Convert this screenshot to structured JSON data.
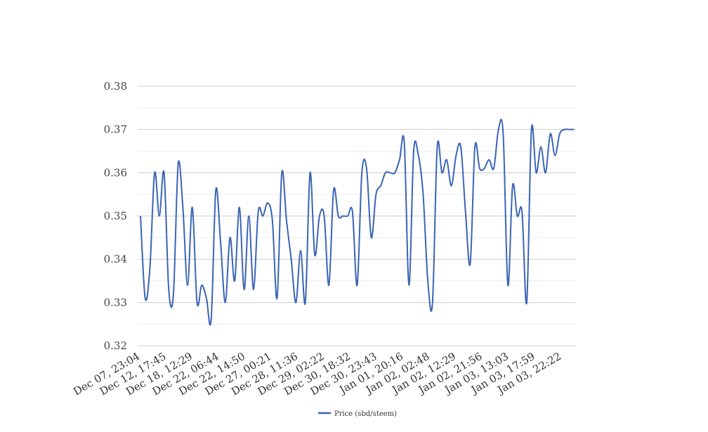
{
  "chart_data": {
    "type": "line",
    "title": "",
    "xlabel": "",
    "ylabel": "",
    "ylim": [
      0.32,
      0.38
    ],
    "y_ticks": [
      "0.32",
      "0.33",
      "0.34",
      "0.35",
      "0.36",
      "0.37",
      "0.38"
    ],
    "y_tick_values": [
      0.32,
      0.33,
      0.34,
      0.35,
      0.36,
      0.37,
      0.38
    ],
    "x_tick_labels": [
      "Dec 07, 23:04",
      "Dec 12, 17:45",
      "Dec 18, 12:29",
      "Dec 22, 06:44",
      "Dec 22, 14:50",
      "Dec 27, 00:21",
      "Dec 28, 11:36",
      "Dec 29, 02:22",
      "Dec 30, 18:32",
      "Dec 30, 23:43",
      "Jan 01, 20:16",
      "Jan 02, 02:48",
      "Jan 02, 12:29",
      "Jan 02, 21:56",
      "Jan 03, 13:03",
      "Jan 03, 17:59",
      "Jan 03, 22:22"
    ],
    "grid": true,
    "minor_grid": true,
    "legend_position": "bottom",
    "colors": {
      "series": "#3a64b6",
      "grid_major": "#cccccc",
      "grid_minor": "#ececec"
    },
    "series": [
      {
        "name": "Price (sbd/steem)",
        "values": [
          0.35,
          0.331,
          0.338,
          0.36,
          0.35,
          0.36,
          0.333,
          0.332,
          0.362,
          0.352,
          0.334,
          0.352,
          0.33,
          0.334,
          0.331,
          0.326,
          0.356,
          0.344,
          0.33,
          0.345,
          0.335,
          0.352,
          0.333,
          0.35,
          0.333,
          0.351,
          0.35,
          0.353,
          0.349,
          0.331,
          0.36,
          0.349,
          0.34,
          0.33,
          0.342,
          0.33,
          0.36,
          0.341,
          0.35,
          0.35,
          0.334,
          0.356,
          0.35,
          0.35,
          0.35,
          0.351,
          0.334,
          0.36,
          0.361,
          0.345,
          0.355,
          0.357,
          0.36,
          0.36,
          0.36,
          0.363,
          0.367,
          0.334,
          0.365,
          0.364,
          0.355,
          0.335,
          0.33,
          0.366,
          0.36,
          0.363,
          0.357,
          0.364,
          0.366,
          0.351,
          0.339,
          0.366,
          0.361,
          0.361,
          0.363,
          0.361,
          0.37,
          0.369,
          0.334,
          0.357,
          0.35,
          0.351,
          0.33,
          0.37,
          0.36,
          0.366,
          0.36,
          0.369,
          0.364,
          0.369,
          0.37,
          0.37,
          0.37
        ]
      }
    ]
  }
}
